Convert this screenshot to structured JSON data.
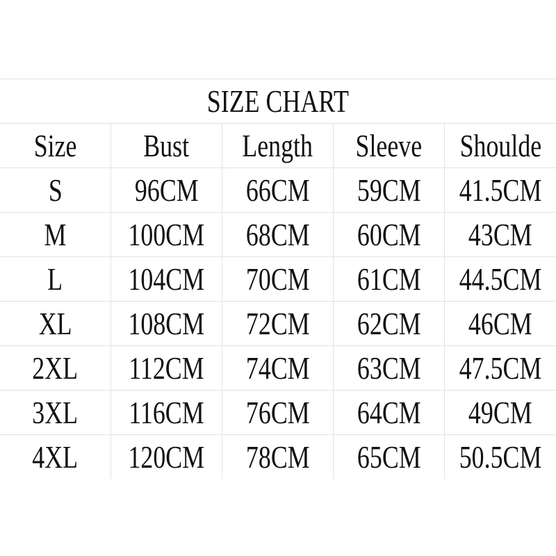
{
  "title": "SIZE CHART",
  "headers": [
    "Size",
    "Bust",
    "Length",
    "Sleeve",
    "Shoulde"
  ],
  "rows": [
    [
      "S",
      "96CM",
      "66CM",
      "59CM",
      "41.5CM"
    ],
    [
      "M",
      "100CM",
      "68CM",
      "60CM",
      "43CM"
    ],
    [
      "L",
      "104CM",
      "70CM",
      "61CM",
      "44.5CM"
    ],
    [
      "XL",
      "108CM",
      "72CM",
      "62CM",
      "46CM"
    ],
    [
      "2XL",
      "112CM",
      "74CM",
      "63CM",
      "47.5CM"
    ],
    [
      "3XL",
      "116CM",
      "76CM",
      "64CM",
      "49CM"
    ],
    [
      "4XL",
      "120CM",
      "78CM",
      "65CM",
      "50.5CM"
    ]
  ]
}
